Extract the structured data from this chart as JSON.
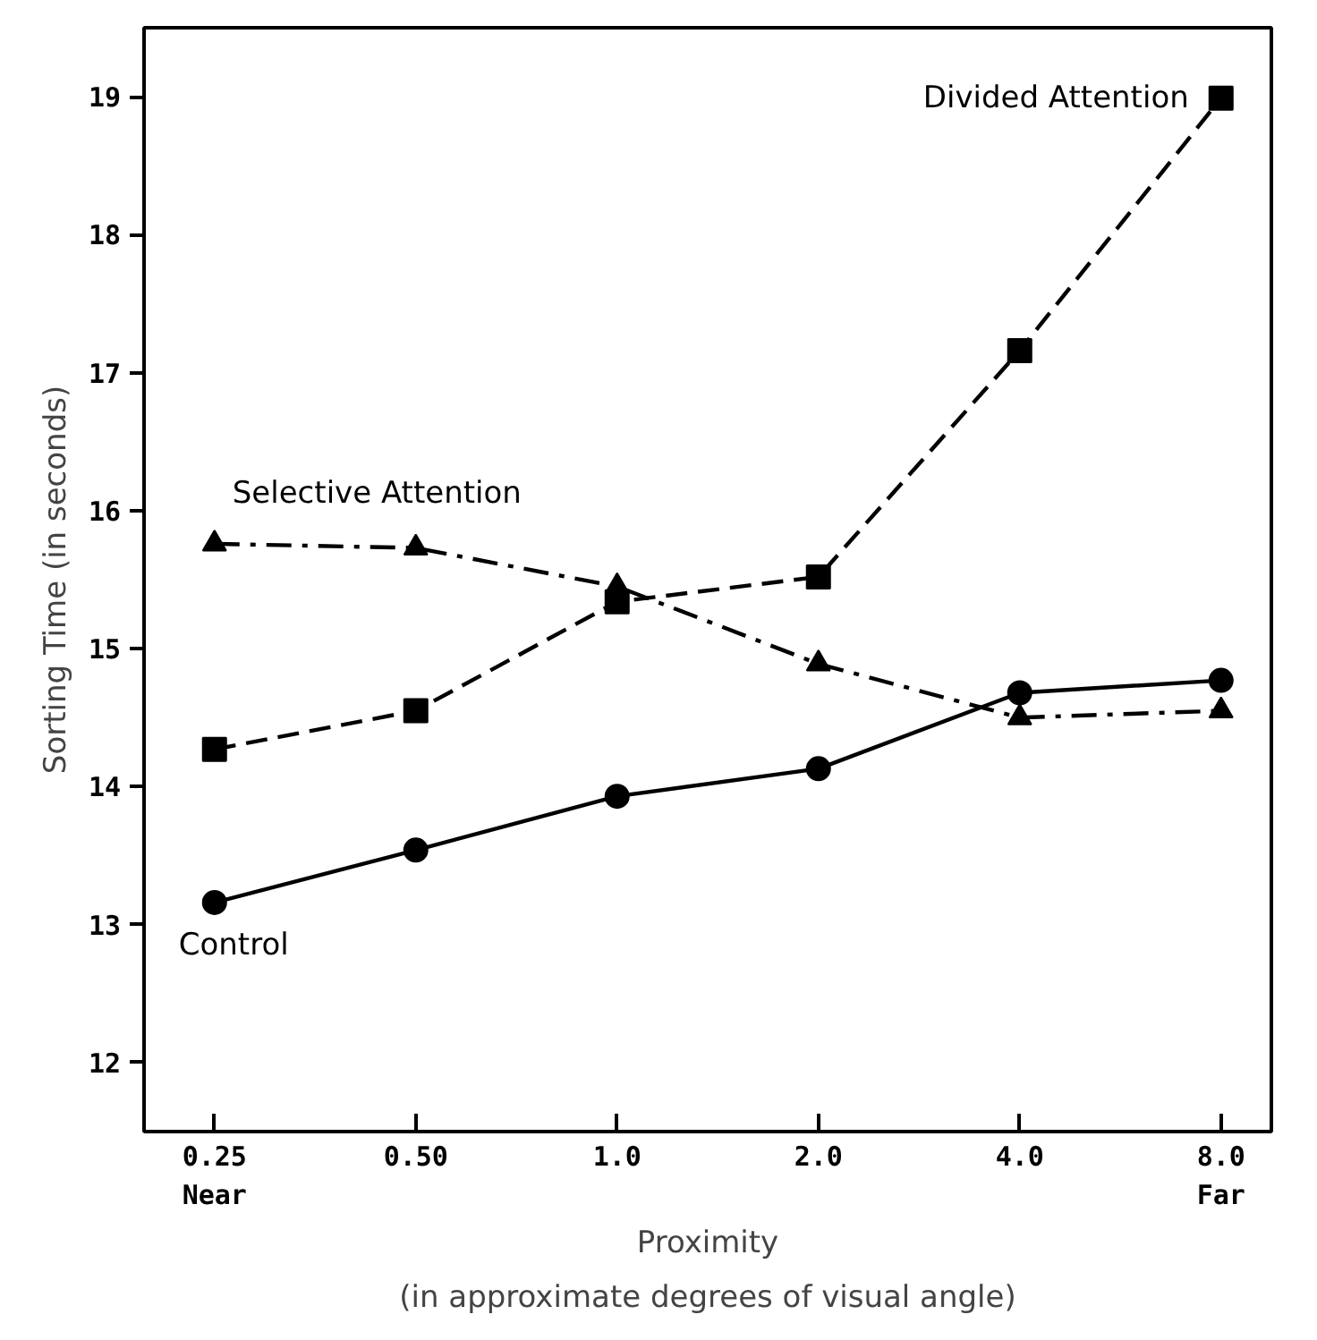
{
  "chart_data": {
    "type": "line",
    "xlabel": "Proximity",
    "ylabel": "Sorting Time (in seconds)",
    "annotations": [
      "(in approximate degrees of visual angle)"
    ],
    "categories": [
      "0.25\nNear",
      "0.50",
      "1.0",
      "2.0",
      "4.0",
      "8.0\nFar"
    ],
    "ylim": [
      11.5,
      19.5
    ],
    "yticks": [
      12,
      13,
      14,
      15,
      16,
      17,
      18,
      19
    ],
    "grid": false,
    "legend": false,
    "series": [
      {
        "name": "Divided Attention",
        "color": "#000000",
        "marker": "square",
        "line_style": "dashed",
        "values": [
          14.27,
          14.55,
          15.34,
          15.52,
          17.16,
          18.99
        ]
      },
      {
        "name": "Selective Attention",
        "color": "#000000",
        "marker": "triangle",
        "line_style": "dashdot",
        "values": [
          15.76,
          15.73,
          15.45,
          14.89,
          14.5,
          14.55
        ]
      },
      {
        "name": "Control",
        "color": "#000000",
        "marker": "circle",
        "line_style": "solid",
        "values": [
          13.16,
          13.54,
          13.93,
          14.13,
          14.68,
          14.77
        ]
      }
    ]
  }
}
